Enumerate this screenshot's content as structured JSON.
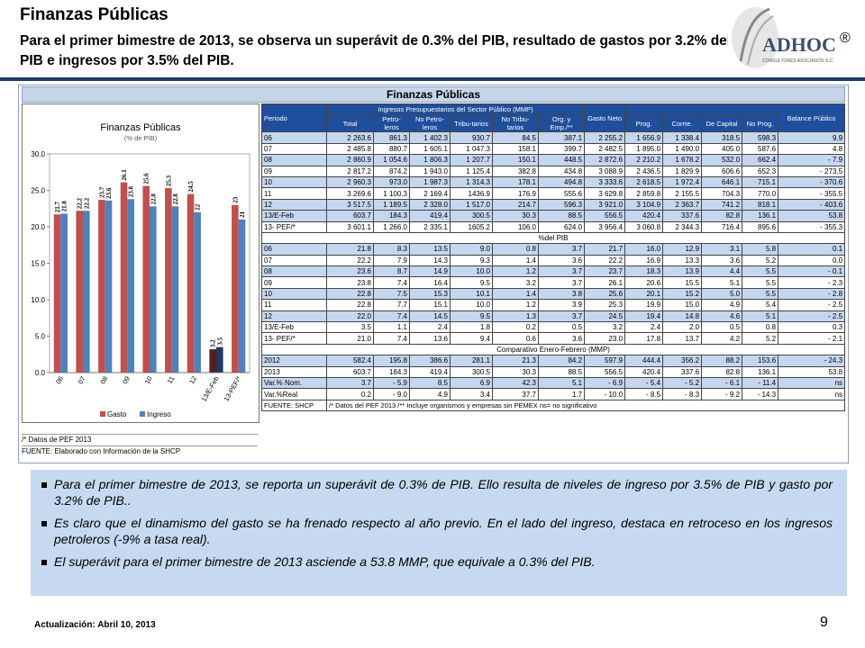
{
  "header": {
    "title": "Finanzas Públicas",
    "subtitle": "Para el primer bimestre de 2013, se observa un superávit de 0.3% del PIB, resultado de gastos por 3.2% del PIB e ingresos por 3.5% del PIB.",
    "logo_text": "ADHOC",
    "logo_subtext": "CONSULTORES ASOCIADOS S.C.",
    "registered": "®"
  },
  "panel_title": "Finanzas Públicas",
  "chart_data": {
    "type": "bar",
    "title": "Finanzas Públicas",
    "subtitle": "(% de PIB)",
    "categories": [
      "06",
      "07",
      "08",
      "09",
      "10",
      "11",
      "12",
      "13/E-Feb",
      "13-PEF/*"
    ],
    "series": [
      {
        "name": "Gasto",
        "values": [
          21.7,
          22.2,
          23.7,
          26.1,
          25.6,
          25.3,
          24.5,
          3.2,
          23.0
        ],
        "color": "#c0504d"
      },
      {
        "name": "Ingreso",
        "values": [
          21.8,
          22.2,
          23.6,
          23.8,
          22.8,
          22.8,
          22.0,
          3.5,
          21.0
        ],
        "color": "#4f81bd"
      }
    ],
    "special_colors": {
      "Gasto": "#5a1d1d",
      "Ingreso": "#1f3a64"
    },
    "yticks": [
      "0.0",
      "5.0",
      "10.0",
      "15.0",
      "20.0",
      "25.0",
      "30.0"
    ],
    "ylim": [
      0,
      30
    ],
    "legend_position": "bottom"
  },
  "chart_notes": {
    "note": "/* Datos de PEF 2013",
    "source": "FUENTE: Elaborado con Información de la SHCP"
  },
  "table": {
    "header_row1": {
      "periodo": "Periodo",
      "ingresos": "Ingresos Presupuestarios del Sector Público (MMP)",
      "gasto": "Gasto Neto",
      "balance": "Balance Público"
    },
    "header_row2": [
      "Total",
      "Petro-leros",
      "No Petro-leros",
      "Tribu-tarios",
      "No Tribu-tarios",
      "Org. y Emp./**",
      "Prog.",
      "Corrte.",
      "De Capital",
      "No Prog."
    ],
    "section1_rows": [
      [
        "06",
        "2 263.6",
        "861.3",
        "1 402.3",
        "930.7",
        "84.5",
        "387.1",
        "2 255.2",
        "1 656.9",
        "1 338.4",
        "318.5",
        "598.3",
        "9.9"
      ],
      [
        "07",
        "2 485.8",
        "880.7",
        "1 605.1",
        "1 047.3",
        "158.1",
        "399.7",
        "2 482.5",
        "1 895.0",
        "1 490.0",
        "405.0",
        "587.6",
        "4.8"
      ],
      [
        "08",
        "2 860.9",
        "1 054.6",
        "1 806.3",
        "1 207.7",
        "150.1",
        "448.5",
        "2 872.6",
        "2 210.2",
        "1 678.2",
        "532.0",
        "662.4",
        "- 7.9"
      ],
      [
        "09",
        "2 817.2",
        "874.2",
        "1 943.0",
        "1 125.4",
        "382.8",
        "434.8",
        "3 088.9",
        "2 436.5",
        "1 829.9",
        "606.6",
        "652.3",
        "- 273.5"
      ],
      [
        "10",
        "2 960.3",
        "973.0",
        "1 987.3",
        "1 314.3",
        "178.1",
        "494.8",
        "3 333.6",
        "2 618.5",
        "1 972.4",
        "646.1",
        "715.1",
        "- 370.6"
      ],
      [
        "11",
        "3 269.6",
        "1 100.3",
        "2 169.4",
        "1436.9",
        "176.9",
        "555.6",
        "3 629.8",
        "2 859.8",
        "2 155.5",
        "704.3",
        "770.0",
        "- 355.5"
      ],
      [
        "12",
        "3 517.5",
        "1 189.5",
        "2 328.0",
        "1 517.0",
        "214.7",
        "596.3",
        "3 921.0",
        "3 104.9",
        "2 363.7",
        "741.2",
        "818.1",
        "- 403.6"
      ],
      [
        "13/E-Feb",
        "603.7",
        "184.3",
        "419.4",
        "300.5",
        "30.3",
        "88.5",
        "556.5",
        "420.4",
        "337.6",
        "82.8",
        "136.1",
        "53.8"
      ],
      [
        "13- PEF/*",
        "3 601.1",
        "1 266.0",
        "2 335.1",
        "1605.2",
        "106.0",
        "624.0",
        "3 956.4",
        "3 060.8",
        "2 344.3",
        "716.4",
        "895.6",
        "- 355.3"
      ]
    ],
    "section2_title": "%del PIB",
    "section2_rows": [
      [
        "06",
        "21.8",
        "8.3",
        "13.5",
        "9.0",
        "0.8",
        "3.7",
        "21.7",
        "16.0",
        "12.9",
        "3.1",
        "5.8",
        "0.1"
      ],
      [
        "07",
        "22.2",
        "7.9",
        "14.3",
        "9.3",
        "1.4",
        "3.6",
        "22.2",
        "16.9",
        "13.3",
        "3.6",
        "5.2",
        "0.0"
      ],
      [
        "08",
        "23.6",
        "8.7",
        "14.9",
        "10.0",
        "1.2",
        "3.7",
        "23.7",
        "18.3",
        "13.9",
        "4.4",
        "5.5",
        "- 0.1"
      ],
      [
        "09",
        "23.8",
        "7.4",
        "16.4",
        "9.5",
        "3.2",
        "3.7",
        "26.1",
        "20.6",
        "15.5",
        "5.1",
        "5.5",
        "- 2.3"
      ],
      [
        "10",
        "22.8",
        "7.5",
        "15.3",
        "10.1",
        "1.4",
        "3.8",
        "25.6",
        "20.1",
        "15.2",
        "5.0",
        "5.5",
        "- 2.8"
      ],
      [
        "11",
        "22.8",
        "7.7",
        "15.1",
        "10.0",
        "1.2",
        "3.9",
        "25.3",
        "19.9",
        "15.0",
        "4.9",
        "5.4",
        "- 2.5"
      ],
      [
        "12",
        "22.0",
        "7.4",
        "14.5",
        "9.5",
        "1.3",
        "3.7",
        "24.5",
        "19.4",
        "14.8",
        "4.6",
        "5.1",
        "- 2.5"
      ],
      [
        "13/E-Feb",
        "3.5",
        "1.1",
        "2.4",
        "1.8",
        "0.2",
        "0.5",
        "3.2",
        "2.4",
        "2.0",
        "0.5",
        "0.8",
        "0.3"
      ],
      [
        "13- PEF/*",
        "21.0",
        "7.4",
        "13.6",
        "9.4",
        "0.6",
        "3.6",
        "23.0",
        "17.8",
        "13.7",
        "4.2",
        "5.2",
        "- 2.1"
      ]
    ],
    "section3_title": "Comparativo Enero-Febrero (MMP)",
    "section3_rows": [
      [
        "2012",
        "582.4",
        "195.8",
        "386.6",
        "281.1",
        "21.3",
        "84.2",
        "597.9",
        "444.4",
        "356.2",
        "88.2",
        "153.6",
        "- 24.3"
      ],
      [
        "2013",
        "603.7",
        "184.3",
        "419.4",
        "300.5",
        "30.3",
        "88.5",
        "556.5",
        "420.4",
        "337.6",
        "82.8",
        "136.1",
        "53.8"
      ],
      [
        "Var.% Nom.",
        "3.7",
        "- 5.9",
        "8.5",
        "6.9",
        "42.3",
        "5.1",
        "- 6.9",
        "- 5.4",
        "- 5.2",
        "- 6.1",
        "- 11.4",
        "ns"
      ],
      [
        "Var.%Real",
        "0.2",
        "- 9.0",
        "4.9",
        "3.4",
        "37.7",
        "1.7",
        "- 10.0",
        "- 8.5",
        "- 8.3",
        "- 9.2",
        "- 14.3",
        "ns"
      ]
    ],
    "footer": {
      "source": "FUENTE: SHCP",
      "note": "/* Datos del PEF 2013 /** Incluye organismos y empresas sin PEMEX     ns= no significativo"
    }
  },
  "bullets": [
    "Para el primer bimestre de 2013, se reporta un superávit de 0.3% de PIB. Ello resulta de niveles de ingreso por 3.5% de PIB y gasto por 3.2% de PIB..",
    "Es claro que el dinamismo del gasto se ha frenado respecto al año previo. En el lado del ingreso, destaca en retroceso en los ingresos petroleros (-9% a tasa real).",
    "El superávit para el primer bimestre de 2013 asciende a 53.8 MMP, que equivale a 0.3% del PIB."
  ],
  "footer": {
    "update": "Actualización: Abril 10, 2013",
    "page_number": "9"
  }
}
